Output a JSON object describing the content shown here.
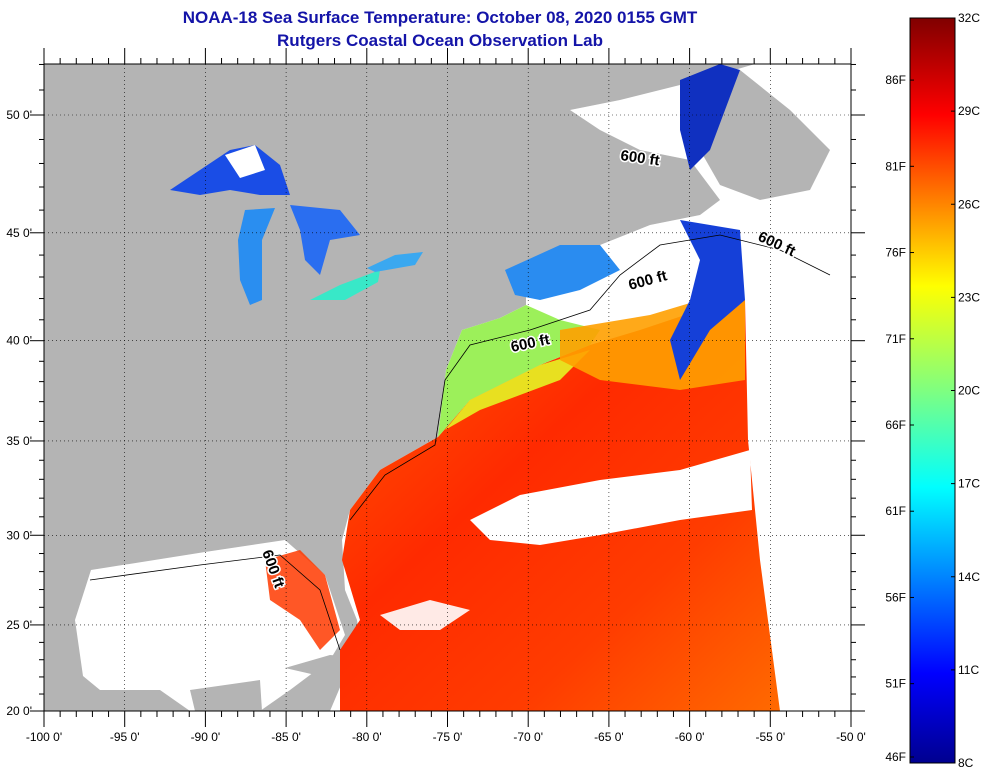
{
  "title": {
    "line1": "NOAA-18 Sea Surface Temperature:  October 08, 2020 0155 GMT",
    "line2": "Rutgers Coastal Ocean Observation Lab"
  },
  "map": {
    "lon_range": [
      -100,
      -50
    ],
    "lat_range": [
      20,
      52.2
    ],
    "lat_ticks": [
      {
        "value": 50,
        "label": "50 0'"
      },
      {
        "value": 45,
        "label": "45 0'"
      },
      {
        "value": 40,
        "label": "40 0'"
      },
      {
        "value": 35,
        "label": "35 0'"
      },
      {
        "value": 30,
        "label": "30 0'"
      },
      {
        "value": 25,
        "label": "25 0'"
      },
      {
        "value": 20,
        "label": "20 0'"
      }
    ],
    "lon_ticks": [
      {
        "value": -100,
        "label": "-100 0'"
      },
      {
        "value": -95,
        "label": "-95 0'"
      },
      {
        "value": -90,
        "label": "-90 0'"
      },
      {
        "value": -85,
        "label": "-85 0'"
      },
      {
        "value": -80,
        "label": "-80 0'"
      },
      {
        "value": -75,
        "label": "-75 0'"
      },
      {
        "value": -70,
        "label": "-70 0'"
      },
      {
        "value": -65,
        "label": "-65 0'"
      },
      {
        "value": -60,
        "label": "-60 0'"
      },
      {
        "value": -55,
        "label": "-55 0'"
      },
      {
        "value": -50,
        "label": "-50 0'"
      }
    ],
    "contour_labels": [
      "600 ft",
      "600 ft",
      "600 ft",
      "600 ft",
      "600 ft"
    ],
    "colors": {
      "land": "#b4b4b4",
      "cloud": "#ffffff"
    }
  },
  "colorbar": {
    "range_c": [
      8,
      32
    ],
    "celsius": [
      {
        "value": 32,
        "label": "32C"
      },
      {
        "value": 29,
        "label": "29C"
      },
      {
        "value": 26,
        "label": "26C"
      },
      {
        "value": 23,
        "label": "23C"
      },
      {
        "value": 20,
        "label": "20C"
      },
      {
        "value": 17,
        "label": "17C"
      },
      {
        "value": 14,
        "label": "14C"
      },
      {
        "value": 11,
        "label": "11C"
      },
      {
        "value": 8,
        "label": "8C"
      }
    ],
    "fahrenheit": [
      {
        "value": 86,
        "label": "86F"
      },
      {
        "value": 81,
        "label": "81F"
      },
      {
        "value": 76,
        "label": "76F"
      },
      {
        "value": 71,
        "label": "71F"
      },
      {
        "value": 66,
        "label": "66F"
      },
      {
        "value": 61,
        "label": "61F"
      },
      {
        "value": 56,
        "label": "56F"
      },
      {
        "value": 51,
        "label": "51F"
      },
      {
        "value": 46,
        "label": "46F"
      }
    ]
  }
}
